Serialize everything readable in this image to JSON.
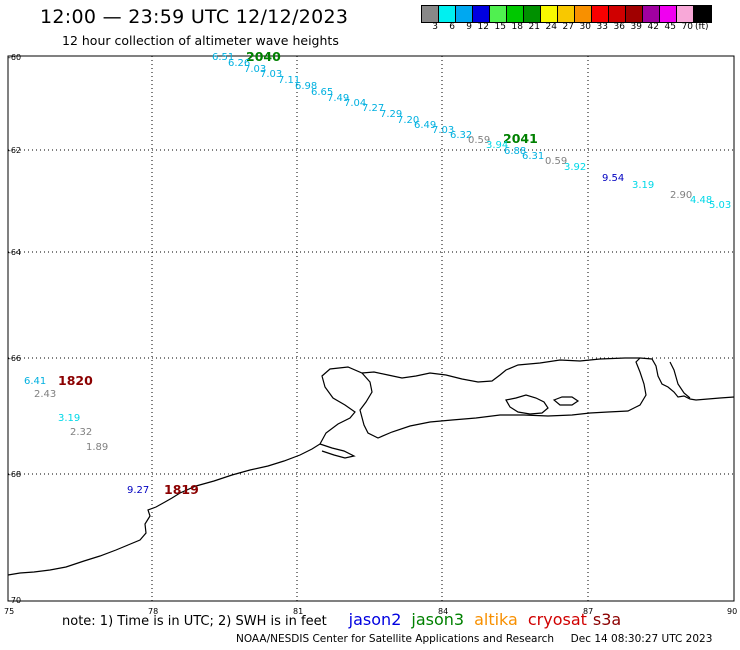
{
  "header": {
    "title": "12:00 — 23:59 UTC 12/12/2023",
    "subtitle": "12 hour collection of altimeter wave heights"
  },
  "colorbar": {
    "unit": "(ft)",
    "bins": [
      {
        "label": "3",
        "color": "#888888"
      },
      {
        "label": "6",
        "color": "#00f0f0"
      },
      {
        "label": "9",
        "color": "#00a8f0"
      },
      {
        "label": "12",
        "color": "#0000e0"
      },
      {
        "label": "15",
        "color": "#50f050"
      },
      {
        "label": "18",
        "color": "#00c800"
      },
      {
        "label": "21",
        "color": "#009000"
      },
      {
        "label": "24",
        "color": "#f8f800"
      },
      {
        "label": "27",
        "color": "#f8c800"
      },
      {
        "label": "30",
        "color": "#f89000"
      },
      {
        "label": "33",
        "color": "#f80000"
      },
      {
        "label": "36",
        "color": "#d00000"
      },
      {
        "label": "39",
        "color": "#a00000"
      },
      {
        "label": "42",
        "color": "#a000a0"
      },
      {
        "label": "45",
        "color": "#f000f0"
      },
      {
        "label": "70",
        "color": "#f8a8d8"
      },
      {
        "label": "",
        "color": "#000000"
      }
    ]
  },
  "axes": {
    "lon_labels": [
      "75",
      "78",
      "81",
      "84",
      "87",
      "90"
    ],
    "lat_labels": [
      "-60",
      "-62",
      "-64",
      "-66",
      "-68",
      "-70"
    ]
  },
  "track_times": [
    {
      "text": "2040",
      "color": "#008000"
    },
    {
      "text": "2041",
      "color": "#008000"
    },
    {
      "text": "1820",
      "color": "#8b0000"
    },
    {
      "text": "1819",
      "color": "#8b0000"
    }
  ],
  "swh_labels": [
    {
      "text": "6.51",
      "color": "#00b0e0"
    },
    {
      "text": "6.26",
      "color": "#00b0e0"
    },
    {
      "text": "7.03",
      "color": "#00b0e0"
    },
    {
      "text": "7.03",
      "color": "#00b0e0"
    },
    {
      "text": "7.11",
      "color": "#00b0e0"
    },
    {
      "text": "6.98",
      "color": "#00b0e0"
    },
    {
      "text": "6.65",
      "color": "#00b0e0"
    },
    {
      "text": "7.49",
      "color": "#00b0e0"
    },
    {
      "text": "7.04",
      "color": "#00b0e0"
    },
    {
      "text": "7.27",
      "color": "#00b0e0"
    },
    {
      "text": "7.29",
      "color": "#00b0e0"
    },
    {
      "text": "7.20",
      "color": "#00b0e0"
    },
    {
      "text": "6.49",
      "color": "#00b0e0"
    },
    {
      "text": "7.03",
      "color": "#00b0e0"
    },
    {
      "text": "6.32",
      "color": "#00b0e0"
    },
    {
      "text": "0.59",
      "color": "#808080"
    },
    {
      "text": "3.94",
      "color": "#00d8e8"
    },
    {
      "text": "6.88",
      "color": "#00b0e0"
    },
    {
      "text": "6.31",
      "color": "#00b0e0"
    },
    {
      "text": "0.59",
      "color": "#808080"
    },
    {
      "text": "3.92",
      "color": "#00d8e8"
    },
    {
      "text": "9.54",
      "color": "#0000c0"
    },
    {
      "text": "3.19",
      "color": "#00d8e8"
    },
    {
      "text": "2.90",
      "color": "#808080"
    },
    {
      "text": "4.48",
      "color": "#00d8e8"
    },
    {
      "text": "5.03",
      "color": "#00d8e8"
    },
    {
      "text": "6.41",
      "color": "#00b0e0"
    },
    {
      "text": "2.43",
      "color": "#808080"
    },
    {
      "text": "3.19",
      "color": "#00d8e8"
    },
    {
      "text": "2.32",
      "color": "#808080"
    },
    {
      "text": "1.89",
      "color": "#808080"
    },
    {
      "text": "9.27",
      "color": "#0000c0"
    }
  ],
  "note": "note: 1) Time is in UTC; 2) SWH is in feet",
  "legend": [
    {
      "name": "jason2",
      "color": "#0000e0"
    },
    {
      "name": "jason3",
      "color": "#008000"
    },
    {
      "name": "altika",
      "color": "#f89000"
    },
    {
      "name": "cryosat",
      "color": "#d00000"
    },
    {
      "name": "s3a",
      "color": "#8b0000"
    }
  ],
  "footer": "NOAA/NESDIS Center for Satellite Applications and Research     Dec 14 08:30:27 UTC 2023"
}
